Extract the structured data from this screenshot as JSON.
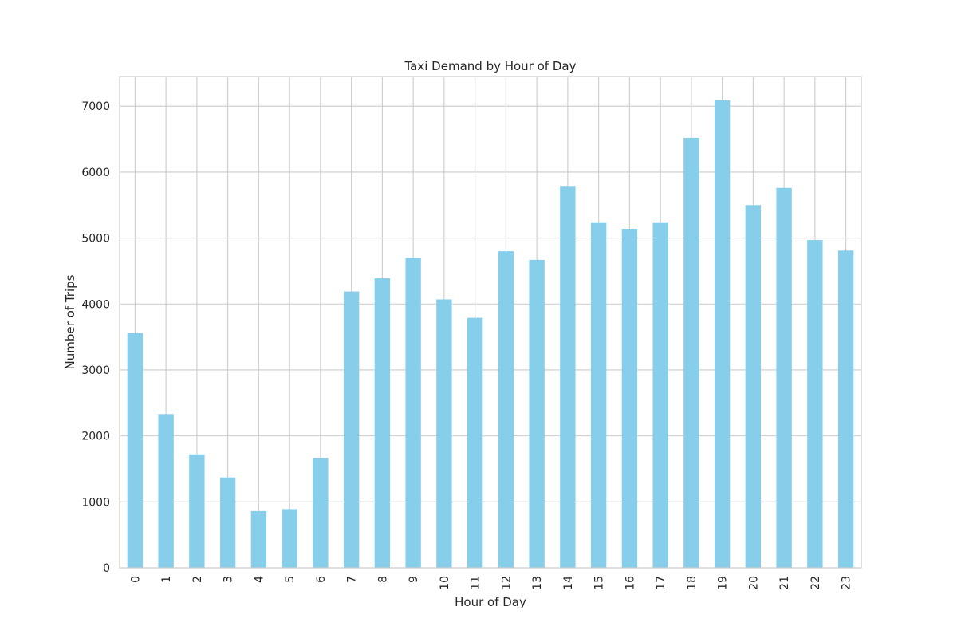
{
  "chart_data": {
    "type": "bar",
    "title": "Taxi Demand by Hour of Day",
    "xlabel": "Hour of Day",
    "ylabel": "Number of Trips",
    "categories": [
      "0",
      "1",
      "2",
      "3",
      "4",
      "5",
      "6",
      "7",
      "8",
      "9",
      "10",
      "11",
      "12",
      "13",
      "14",
      "15",
      "16",
      "17",
      "18",
      "19",
      "20",
      "21",
      "22",
      "23"
    ],
    "values": [
      3560,
      2330,
      1720,
      1370,
      860,
      890,
      1670,
      4190,
      4390,
      4700,
      4070,
      3790,
      4800,
      4670,
      5790,
      5240,
      5140,
      5240,
      6520,
      7090,
      5500,
      5760,
      4970,
      4810
    ],
    "ylim": [
      0,
      7450
    ],
    "yticks": [
      0,
      1000,
      2000,
      3000,
      4000,
      5000,
      6000,
      7000
    ],
    "grid": true,
    "bar_color": "#87CEEB",
    "grid_color": "#cccccc",
    "spine_color": "#cccccc"
  }
}
